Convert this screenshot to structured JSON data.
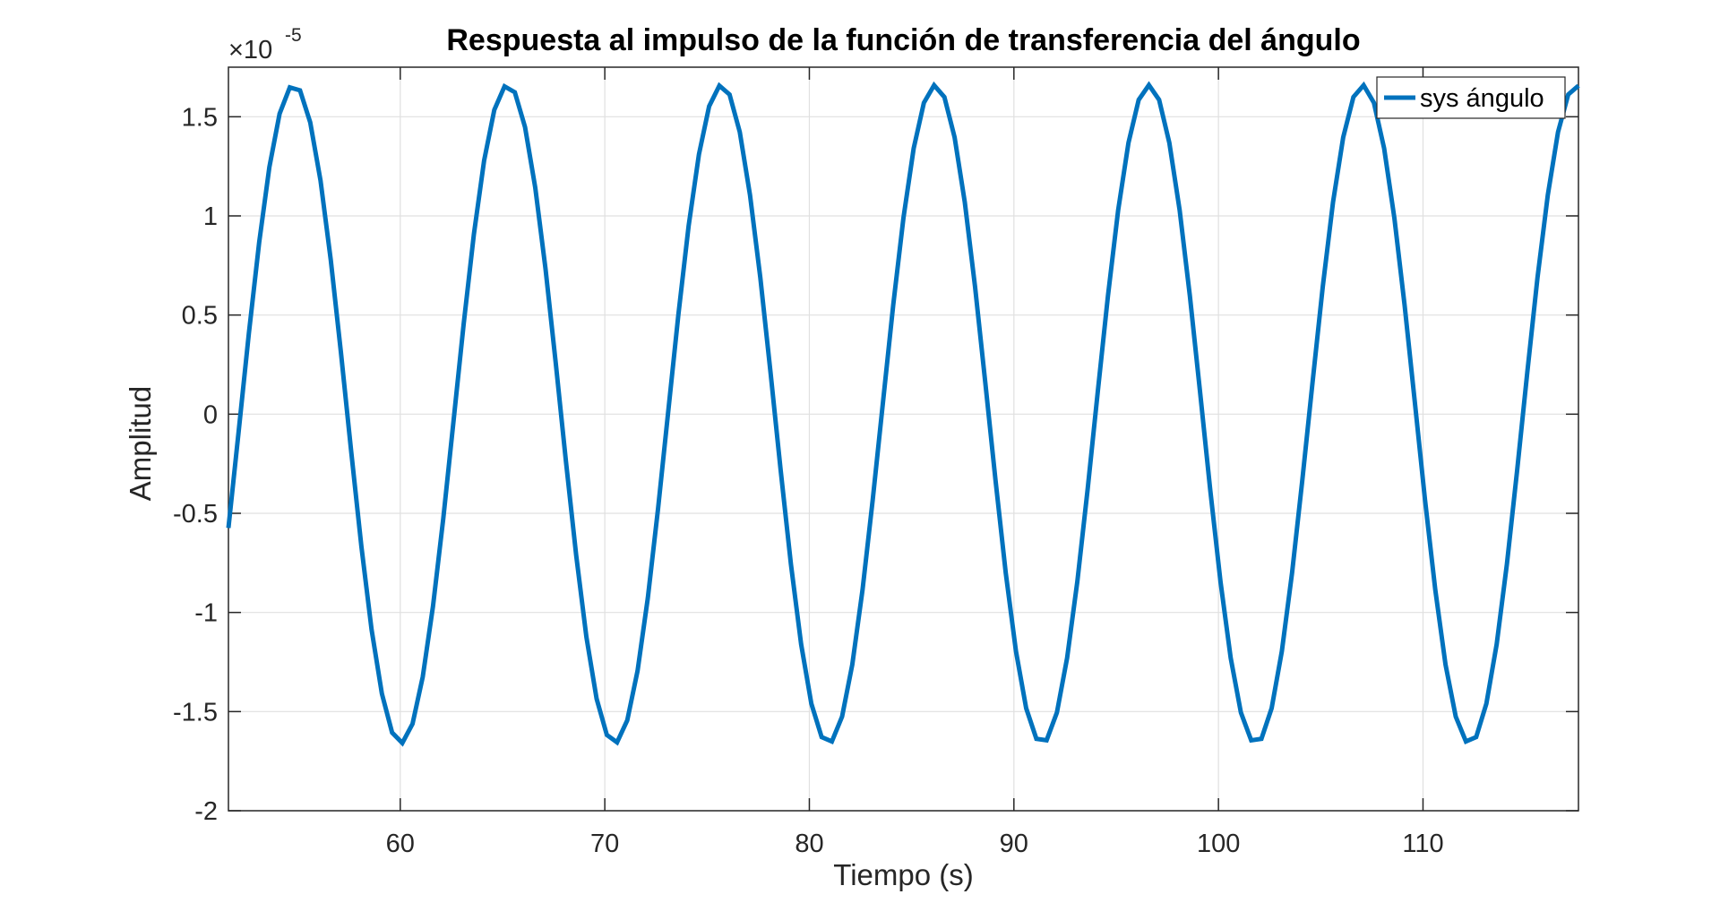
{
  "chart_data": {
    "type": "line",
    "title": "Respuesta al impulso de la función de transferencia del ángulo",
    "xlabel": "Tiempo (s)",
    "ylabel": "Amplitud",
    "exponent_base": "×10",
    "exponent_power": "-5",
    "xlim": [
      51.6,
      117.6
    ],
    "ylim": [
      -2,
      1.75
    ],
    "xticks": [
      60,
      70,
      80,
      90,
      100,
      110
    ],
    "xtick_labels": [
      "60",
      "70",
      "80",
      "90",
      "100",
      "110"
    ],
    "yticks": [
      1.5,
      1,
      0.5,
      0,
      -0.5,
      -1,
      -1.5,
      -2
    ],
    "ytick_labels": [
      "1.5",
      "1",
      "0.5",
      "0",
      "-0.5",
      "-1",
      "-1.5",
      "-2"
    ],
    "grid": true,
    "legend_position": "top-right",
    "series": [
      {
        "name": "sys ángulo",
        "color": "#0072bd",
        "amplitude": 1.66,
        "period": 10.45,
        "first_peak_t": 54.8,
        "t_start": 51.6,
        "t_end": 117.6,
        "sample_step": 0.5
      }
    ]
  }
}
